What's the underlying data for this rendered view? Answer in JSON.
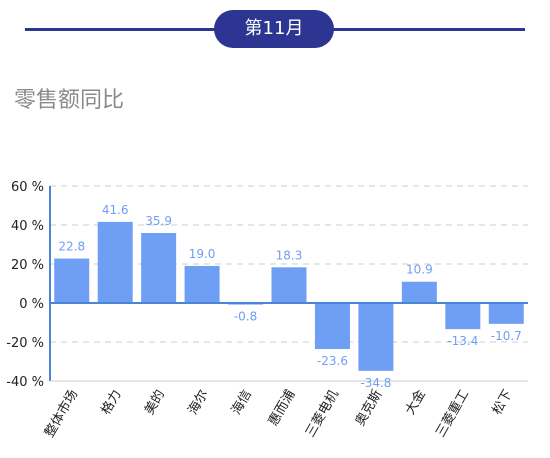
{
  "header": {
    "month_badge": "第11月"
  },
  "main": {
    "title": "零售额同比"
  },
  "chart_data": {
    "type": "bar",
    "title": "",
    "xlabel": "",
    "ylabel": "",
    "ylim": [
      -40,
      60
    ],
    "yticks": [
      60,
      40,
      20,
      0,
      -20,
      -40
    ],
    "ytick_labels": [
      "60 %",
      "40 %",
      "20 %",
      "0 %",
      "-20 %",
      "-40 %"
    ],
    "grid": "horizontal dashed",
    "categories": [
      "整体市场",
      "格力",
      "美的",
      "海尔",
      "海信",
      "惠而浦",
      "三菱电机",
      "奥克斯",
      "大金",
      "三菱重工",
      "松下"
    ],
    "values": [
      22.8,
      41.6,
      35.9,
      19.0,
      -0.8,
      18.3,
      -23.6,
      -34.8,
      10.9,
      -13.4,
      -10.7
    ],
    "value_labels": [
      "22.8",
      "41.6",
      "35.9",
      "19.0",
      "-0.8",
      "18.3",
      "-23.6",
      "-34.8",
      "10.9",
      "-13.4",
      "-10.7"
    ],
    "colors": {
      "bar": "#6f9ff5",
      "axis": "#4a86d4",
      "grid": "#cccccc"
    }
  }
}
